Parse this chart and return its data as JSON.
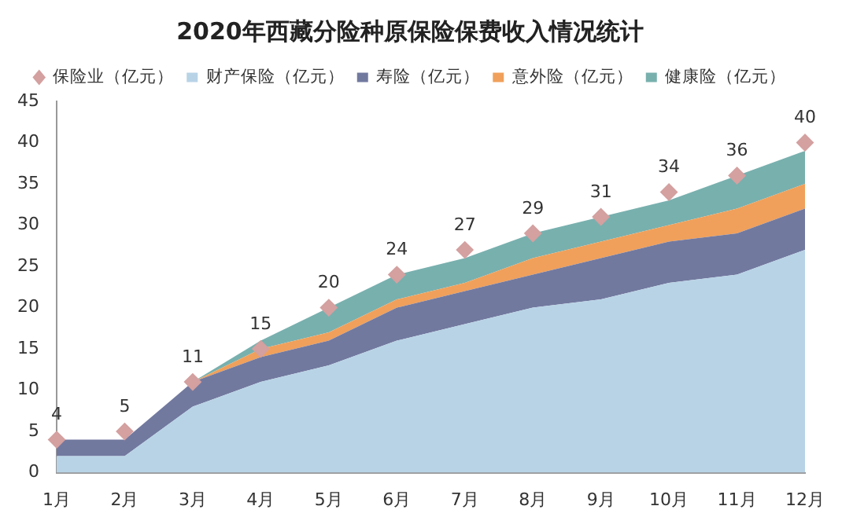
{
  "chart_data": {
    "type": "area",
    "title": "2020年西藏分险种原保险保费收入情况统计",
    "categories": [
      "1月",
      "2月",
      "3月",
      "4月",
      "5月",
      "6月",
      "7月",
      "8月",
      "9月",
      "10月",
      "11月",
      "12月"
    ],
    "stacked": true,
    "ylim": [
      0,
      45
    ],
    "yticks": [
      0,
      5,
      10,
      15,
      20,
      25,
      30,
      35,
      40,
      45
    ],
    "grid": false,
    "legend": "top",
    "series": [
      {
        "name": "财产保险（亿元）",
        "color": "#b8d3e6",
        "values": [
          2,
          2,
          8,
          11,
          13,
          16,
          18,
          20,
          21,
          23,
          24,
          27
        ]
      },
      {
        "name": "寿险（亿元）",
        "color": "#72799f",
        "values": [
          2,
          2,
          3,
          3,
          3,
          4,
          4,
          4,
          5,
          5,
          5,
          5
        ]
      },
      {
        "name": "意外险（亿元）",
        "color": "#f0a05b",
        "values": [
          0,
          0,
          0,
          1,
          1,
          1,
          1,
          2,
          2,
          2,
          3,
          3
        ]
      },
      {
        "name": "健康险（亿元）",
        "color": "#78b0ae",
        "values": [
          0,
          0,
          0,
          1,
          3,
          3,
          3,
          3,
          3,
          3,
          4,
          4
        ]
      },
      {
        "name": "保险业（亿元）",
        "type": "scatter",
        "marker": "diamond",
        "data_labels": true,
        "color": "#d4a0a0",
        "values": [
          4,
          5,
          11,
          15,
          20,
          24,
          27,
          29,
          31,
          34,
          36,
          40
        ]
      }
    ]
  }
}
